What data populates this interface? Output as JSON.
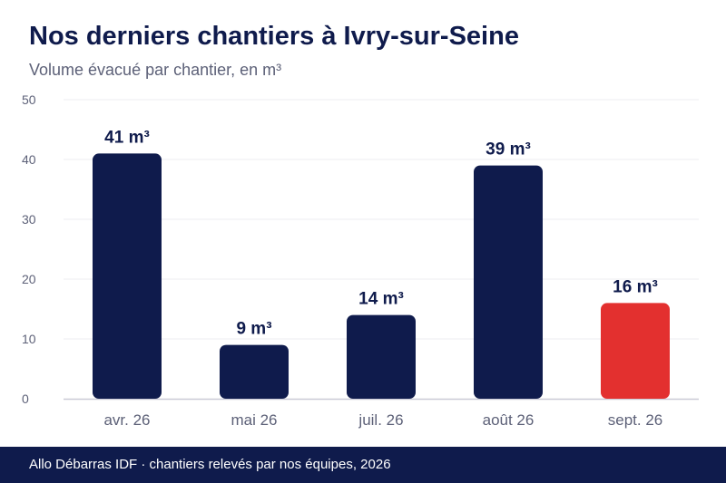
{
  "title": "Nos derniers chantiers à Ivry-sur-Seine",
  "subtitle": "Volume évacué par chantier, en m³",
  "footer": "Allo Débarras IDF · chantiers relevés par nos équipes, 2026",
  "colors": {
    "bar": "#0f1b4c",
    "highlight": "#e3302f",
    "grid": "#ececf2",
    "axis": "#c9cad6",
    "tick_text": "#5d6178",
    "label_text": "#0f1b4c"
  },
  "chart_data": {
    "type": "bar",
    "categories": [
      "avr. 26",
      "mai 26",
      "juil. 26",
      "août 26",
      "sept. 26"
    ],
    "values": [
      41,
      9,
      14,
      39,
      16
    ],
    "value_labels": [
      "41 m³",
      "9 m³",
      "14 m³",
      "39 m³",
      "16 m³"
    ],
    "highlight_index": 4,
    "ylim": [
      0,
      50
    ],
    "yticks": [
      "0",
      "10",
      "20",
      "30",
      "40",
      "50"
    ],
    "grid": true,
    "legend": "none"
  }
}
